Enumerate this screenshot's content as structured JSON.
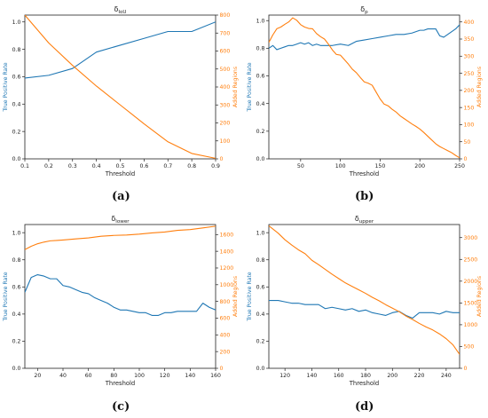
{
  "panels": [
    {
      "id": "a",
      "caption": "(a)",
      "chart_data": {
        "type": "line",
        "title": "δIoU",
        "title_main": "δ",
        "title_sub": "IoU",
        "xlabel": "Threshold",
        "ylabel_left": "True Positive Rate",
        "ylabel_right": "Added Regions",
        "xlim": [
          0.1,
          0.9
        ],
        "ylim_left": [
          0.0,
          1.05
        ],
        "ylim_right": [
          0,
          800
        ],
        "xticks": [
          "0.1",
          "0.2",
          "0.3",
          "0.4",
          "0.5",
          "0.6",
          "0.7",
          "0.8",
          "0.9"
        ],
        "xtick_values": [
          0.1,
          0.2,
          0.3,
          0.4,
          0.5,
          0.6,
          0.7,
          0.8,
          0.9
        ],
        "yticks_left": [
          "0.0",
          "0.2",
          "0.4",
          "0.6",
          "0.8",
          "1.0"
        ],
        "ytick_left_values": [
          0,
          0.2,
          0.4,
          0.6,
          0.8,
          1.0
        ],
        "yticks_right": [
          "0",
          "100",
          "200",
          "300",
          "400",
          "500",
          "600",
          "700",
          "800"
        ],
        "ytick_right_values": [
          0,
          100,
          200,
          300,
          400,
          500,
          600,
          700,
          800
        ],
        "series": [
          {
            "axis": "left",
            "color": "#1f77b4",
            "x": [
              0.1,
              0.2,
              0.3,
              0.4,
              0.5,
              0.6,
              0.7,
              0.8,
              0.9
            ],
            "y": [
              0.59,
              0.61,
              0.66,
              0.78,
              0.83,
              0.88,
              0.93,
              0.93,
              1.0
            ]
          },
          {
            "axis": "right",
            "color": "#ff7f0e",
            "x": [
              0.1,
              0.2,
              0.3,
              0.4,
              0.5,
              0.6,
              0.7,
              0.8,
              0.9
            ],
            "y": [
              800,
              645,
              520,
              405,
              300,
              195,
              95,
              30,
              3
            ]
          }
        ]
      }
    },
    {
      "id": "b",
      "caption": "(b)",
      "chart_data": {
        "type": "line",
        "title": "δp",
        "title_main": "δ",
        "title_sub": "p",
        "xlabel": "Threshold",
        "ylabel_left": "True Positive Rate",
        "ylabel_right": "Added Regions",
        "xlim": [
          10,
          250
        ],
        "ylim_left": [
          0.0,
          1.04
        ],
        "ylim_right": [
          0,
          420
        ],
        "xticks": [
          "50",
          "100",
          "150",
          "200",
          "250"
        ],
        "xtick_values": [
          50,
          100,
          150,
          200,
          250
        ],
        "yticks_left": [
          "0.0",
          "0.2",
          "0.4",
          "0.6",
          "0.8",
          "1.0"
        ],
        "ytick_left_values": [
          0,
          0.2,
          0.4,
          0.6,
          0.8,
          1.0
        ],
        "yticks_right": [
          "0",
          "50",
          "100",
          "150",
          "200",
          "250",
          "300",
          "350",
          "400"
        ],
        "ytick_right_values": [
          0,
          50,
          100,
          150,
          200,
          250,
          300,
          350,
          400
        ],
        "series": [
          {
            "axis": "left",
            "color": "#1f77b4",
            "x": [
              10,
              15,
              20,
              25,
              30,
              35,
              40,
              45,
              50,
              55,
              60,
              65,
              70,
              75,
              80,
              90,
              100,
              110,
              120,
              130,
              140,
              150,
              160,
              170,
              180,
              190,
              200,
              205,
              210,
              215,
              220,
              225,
              230,
              240,
              245,
              250
            ],
            "y": [
              0.8,
              0.82,
              0.79,
              0.8,
              0.81,
              0.82,
              0.82,
              0.83,
              0.84,
              0.83,
              0.84,
              0.82,
              0.83,
              0.82,
              0.82,
              0.82,
              0.83,
              0.82,
              0.85,
              0.86,
              0.87,
              0.88,
              0.89,
              0.9,
              0.9,
              0.91,
              0.93,
              0.93,
              0.94,
              0.94,
              0.94,
              0.89,
              0.88,
              0.92,
              0.94,
              0.97
            ]
          },
          {
            "axis": "right",
            "color": "#ff7f0e",
            "x": [
              10,
              15,
              20,
              25,
              30,
              35,
              40,
              45,
              50,
              55,
              60,
              65,
              70,
              75,
              80,
              85,
              90,
              95,
              100,
              105,
              110,
              115,
              120,
              125,
              130,
              135,
              140,
              145,
              150,
              155,
              160,
              165,
              170,
              175,
              180,
              185,
              190,
              195,
              200,
              205,
              210,
              215,
              220,
              225,
              230,
              235,
              240,
              245,
              250
            ],
            "y": [
              340,
              362,
              380,
              385,
              393,
              400,
              412,
              405,
              392,
              385,
              381,
              380,
              366,
              357,
              350,
              335,
              318,
              305,
              303,
              290,
              277,
              262,
              252,
              238,
              225,
              221,
              215,
              195,
              175,
              160,
              155,
              145,
              137,
              126,
              118,
              110,
              102,
              95,
              87,
              77,
              66,
              55,
              44,
              36,
              30,
              24,
              18,
              10,
              3
            ]
          }
        ]
      }
    },
    {
      "id": "c",
      "caption": "(c)",
      "chart_data": {
        "type": "line",
        "title": "δlower",
        "title_main": "δ",
        "title_sub": "lower",
        "xlabel": "Threshold",
        "ylabel_left": "True Positive Rate",
        "ylabel_right": "Added Regions",
        "xlim": [
          10,
          160
        ],
        "ylim_left": [
          0.0,
          1.06
        ],
        "ylim_right": [
          0,
          1720
        ],
        "xticks": [
          "20",
          "40",
          "60",
          "80",
          "100",
          "120",
          "140",
          "160"
        ],
        "xtick_values": [
          20,
          40,
          60,
          80,
          100,
          120,
          140,
          160
        ],
        "yticks_left": [
          "0.0",
          "0.2",
          "0.4",
          "0.6",
          "0.8",
          "1.0"
        ],
        "ytick_left_values": [
          0,
          0.2,
          0.4,
          0.6,
          0.8,
          1.0
        ],
        "yticks_right": [
          "0",
          "200",
          "400",
          "600",
          "800",
          "1000",
          "1200",
          "1400",
          "1600"
        ],
        "ytick_right_values": [
          0,
          200,
          400,
          600,
          800,
          1000,
          1200,
          1400,
          1600
        ],
        "series": [
          {
            "axis": "left",
            "color": "#1f77b4",
            "x": [
              10,
              15,
              20,
              25,
              30,
              35,
              40,
              45,
              50,
              55,
              60,
              65,
              70,
              75,
              80,
              85,
              90,
              95,
              100,
              105,
              110,
              115,
              120,
              125,
              130,
              135,
              140,
              145,
              150,
              155,
              160
            ],
            "y": [
              0.56,
              0.67,
              0.69,
              0.68,
              0.66,
              0.66,
              0.61,
              0.6,
              0.58,
              0.56,
              0.55,
              0.52,
              0.5,
              0.48,
              0.45,
              0.43,
              0.43,
              0.42,
              0.41,
              0.41,
              0.39,
              0.39,
              0.41,
              0.41,
              0.42,
              0.42,
              0.42,
              0.42,
              0.48,
              0.45,
              0.43
            ]
          },
          {
            "axis": "right",
            "color": "#ff7f0e",
            "x": [
              10,
              15,
              20,
              25,
              30,
              35,
              40,
              50,
              60,
              70,
              80,
              90,
              100,
              110,
              120,
              130,
              140,
              150,
              160
            ],
            "y": [
              1420,
              1460,
              1490,
              1510,
              1525,
              1530,
              1535,
              1548,
              1560,
              1580,
              1590,
              1595,
              1605,
              1620,
              1630,
              1650,
              1660,
              1680,
              1700
            ]
          }
        ]
      }
    },
    {
      "id": "d",
      "caption": "(d)",
      "chart_data": {
        "type": "line",
        "title": "δupper",
        "title_main": "δ",
        "title_sub": "upper",
        "xlabel": "Threshold",
        "ylabel_left": "True Positive Rate",
        "ylabel_right": "Added Regions",
        "xlim": [
          108,
          250
        ],
        "ylim_left": [
          0.0,
          1.06
        ],
        "ylim_right": [
          0,
          3300
        ],
        "xticks": [
          "120",
          "140",
          "160",
          "180",
          "200",
          "220",
          "240"
        ],
        "xtick_values": [
          120,
          140,
          160,
          180,
          200,
          220,
          240
        ],
        "yticks_left": [
          "0.0",
          "0.2",
          "0.4",
          "0.6",
          "0.8",
          "1.0"
        ],
        "ytick_left_values": [
          0,
          0.2,
          0.4,
          0.6,
          0.8,
          1.0
        ],
        "yticks_right": [
          "0",
          "500",
          "1000",
          "1500",
          "2000",
          "2500",
          "3000"
        ],
        "ytick_right_values": [
          0,
          500,
          1000,
          1500,
          2000,
          2500,
          3000
        ],
        "series": [
          {
            "axis": "left",
            "color": "#1f77b4",
            "x": [
              108,
              115,
              120,
              125,
              130,
              135,
              140,
              145,
              150,
              155,
              160,
              165,
              170,
              175,
              180,
              185,
              190,
              195,
              200,
              205,
              210,
              215,
              220,
              225,
              230,
              235,
              240,
              245,
              250
            ],
            "y": [
              0.5,
              0.5,
              0.49,
              0.48,
              0.48,
              0.47,
              0.47,
              0.47,
              0.44,
              0.45,
              0.44,
              0.43,
              0.44,
              0.42,
              0.43,
              0.41,
              0.4,
              0.39,
              0.41,
              0.42,
              0.39,
              0.37,
              0.41,
              0.41,
              0.41,
              0.4,
              0.42,
              0.41,
              0.41
            ]
          },
          {
            "axis": "right",
            "color": "#ff7f0e",
            "x": [
              108,
              115,
              120,
              125,
              130,
              135,
              140,
              145,
              150,
              155,
              160,
              165,
              170,
              175,
              180,
              185,
              190,
              195,
              200,
              205,
              210,
              215,
              220,
              225,
              230,
              235,
              240,
              245,
              250
            ],
            "y": [
              3270,
              3100,
              2950,
              2830,
              2720,
              2630,
              2480,
              2380,
              2270,
              2160,
              2060,
              1960,
              1880,
              1800,
              1720,
              1630,
              1550,
              1460,
              1380,
              1300,
              1200,
              1120,
              1030,
              950,
              880,
              790,
              680,
              540,
              320
            ]
          }
        ]
      }
    }
  ]
}
